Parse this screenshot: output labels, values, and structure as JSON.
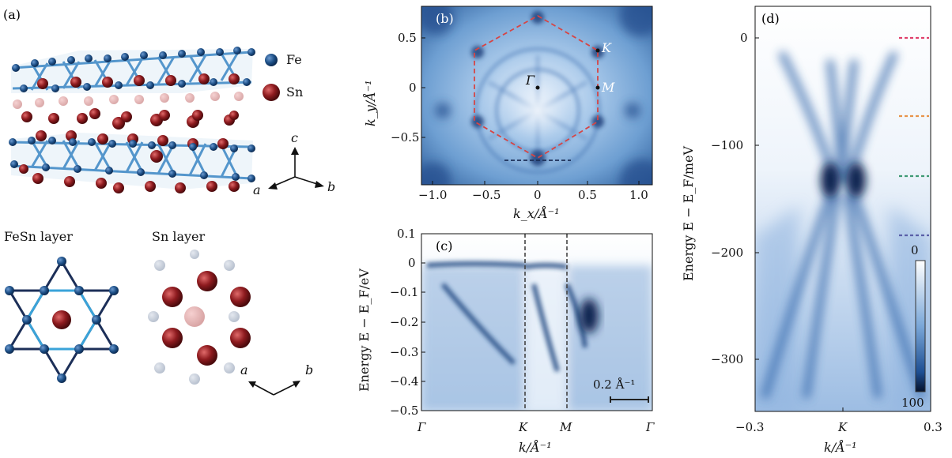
{
  "panel_a": {
    "label": "(a)",
    "legend": [
      {
        "element": "Fe",
        "color": "#1d4f86"
      },
      {
        "element": "Sn",
        "color": "#8e1b1f"
      }
    ],
    "axes_3d": [
      "c",
      "a",
      "b"
    ],
    "layer_titles": [
      "FeSn layer",
      "Sn layer"
    ],
    "axes_2d": [
      "a",
      "b"
    ]
  },
  "panel_b": {
    "label": "(b)",
    "points": [
      "Γ",
      "K",
      "M"
    ],
    "xlabel": "k_x/Å⁻¹",
    "ylabel": "k_y/Å⁻¹",
    "xticks": [
      "−1.0",
      "−0.5",
      "0",
      "0.5",
      "1.0"
    ],
    "yticks": [
      "0.5",
      "0",
      "−0.5"
    ]
  },
  "panel_c": {
    "label": "(c)",
    "ylabel": "Energy E − E_F/eV",
    "yticks": [
      "0.1",
      "0",
      "−0.1",
      "−0.2",
      "−0.3",
      "−0.4",
      "−0.5"
    ],
    "xticks": [
      "Γ",
      "K",
      "M",
      "Γ"
    ],
    "xlabel": "k/Å⁻¹",
    "scalebar": "0.2 Å⁻¹"
  },
  "panel_d": {
    "label": "(d)",
    "ylabel": "Energy E − E_F/meV",
    "yticks": [
      "0",
      "−100",
      "−200",
      "−300"
    ],
    "xticks": [
      "−0.3",
      "K",
      "0.3"
    ],
    "xlabel": "k/Å⁻¹",
    "colorbar_min": "0",
    "colorbar_max": "100",
    "marker_colors": [
      "#e0406b",
      "#e8944a",
      "#3f9a74",
      "#5a5fa8"
    ]
  }
}
